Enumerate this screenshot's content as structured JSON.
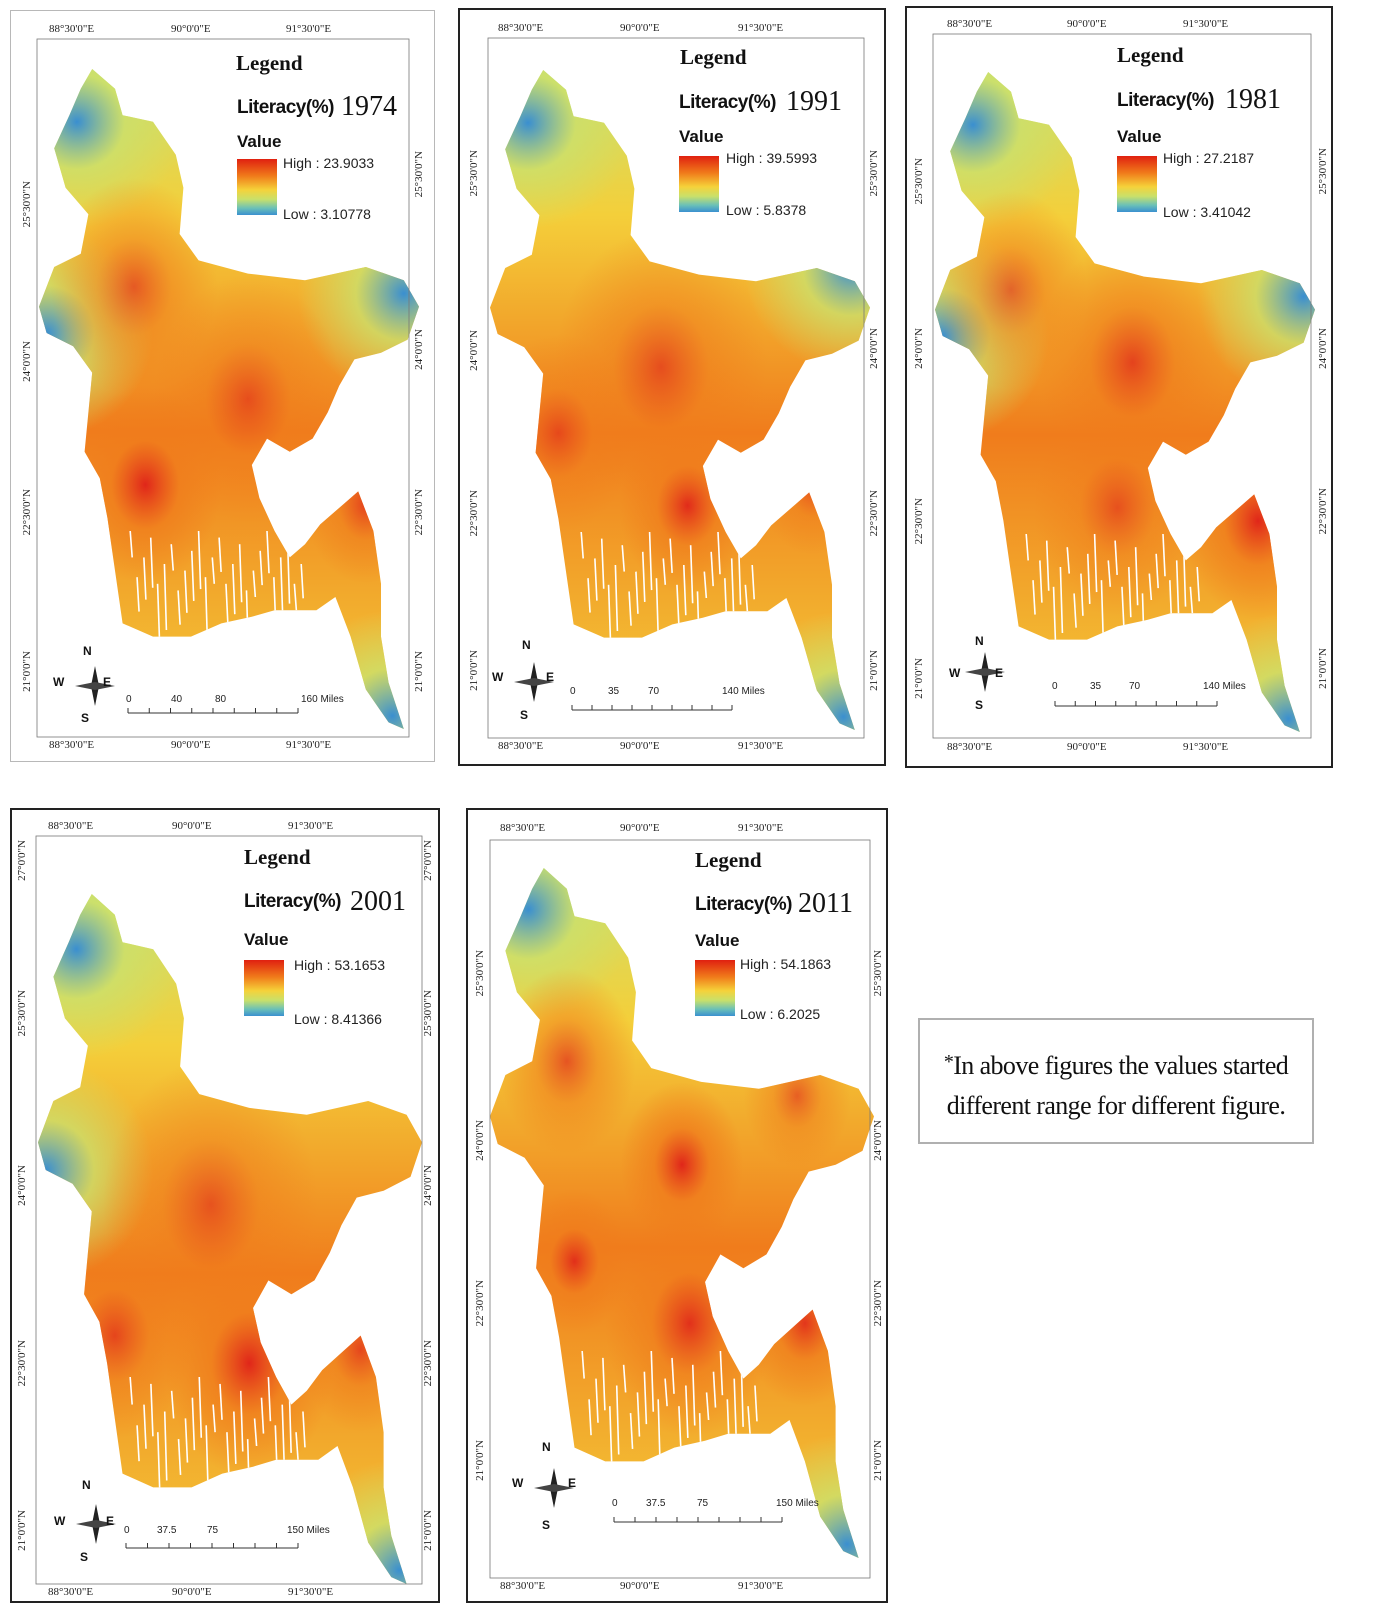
{
  "maps": [
    {
      "id": "map-1974",
      "legend_title": "Legend",
      "variable_label": "Literacy(%)",
      "year": "1974",
      "value_label": "Value",
      "high_label": "High : 23.9033",
      "low_label": "Low : 3.10778",
      "high": 23.9033,
      "low": 3.10778,
      "lon_ticks": [
        "88°30'0\"E",
        "90°0'0\"E",
        "91°30'0\"E"
      ],
      "lat_ticks": [
        "25°30'0\"N",
        "24°0'0\"N",
        "22°30'0\"N",
        "21°0'0\"N"
      ],
      "scale_ticks": [
        "0",
        "40",
        "80",
        "160 Miles"
      ],
      "compass": {
        "n": "N",
        "s": "S",
        "e": "E",
        "w": "W"
      }
    },
    {
      "id": "map-1991",
      "legend_title": "Legend",
      "variable_label": "Literacy(%)",
      "year": "1991",
      "value_label": "Value",
      "high_label": "High : 39.5993",
      "low_label": "Low : 5.8378",
      "high": 39.5993,
      "low": 5.8378,
      "lon_ticks": [
        "88°30'0\"E",
        "90°0'0\"E",
        "91°30'0\"E"
      ],
      "lat_ticks": [
        "25°30'0\"N",
        "24°0'0\"N",
        "22°30'0\"N",
        "21°0'0\"N"
      ],
      "scale_ticks": [
        "0",
        "35",
        "70",
        "140 Miles"
      ],
      "compass": {
        "n": "N",
        "s": "S",
        "e": "E",
        "w": "W"
      }
    },
    {
      "id": "map-1981",
      "legend_title": "Legend",
      "variable_label": "Literacy(%)",
      "year": "1981",
      "value_label": "Value",
      "high_label": "High : 27.2187",
      "low_label": "Low : 3.41042",
      "high": 27.2187,
      "low": 3.41042,
      "lon_ticks": [
        "88°30'0\"E",
        "90°0'0\"E",
        "91°30'0\"E"
      ],
      "lat_ticks": [
        "25°30'0\"N",
        "24°0'0\"N",
        "22°30'0\"N",
        "21°0'0\"N"
      ],
      "scale_ticks": [
        "0",
        "35",
        "70",
        "140 Miles"
      ],
      "compass": {
        "n": "N",
        "s": "S",
        "e": "E",
        "w": "W"
      }
    },
    {
      "id": "map-2001",
      "legend_title": "Legend",
      "variable_label": "Literacy(%)",
      "year": "2001",
      "value_label": "Value",
      "high_label": "High : 53.1653",
      "low_label": "Low : 8.41366",
      "high": 53.1653,
      "low": 8.41366,
      "lon_ticks": [
        "88°30'0\"E",
        "90°0'0\"E",
        "91°30'0\"E"
      ],
      "lat_ticks": [
        "27°0'0\"N",
        "25°30'0\"N",
        "24°0'0\"N",
        "22°30'0\"N",
        "21°0'0\"N"
      ],
      "scale_ticks": [
        "0",
        "37.5",
        "75",
        "150 Miles"
      ],
      "compass": {
        "n": "N",
        "s": "S",
        "e": "E",
        "w": "W"
      }
    },
    {
      "id": "map-2011",
      "legend_title": "Legend",
      "variable_label": "Literacy(%)",
      "year": "2011",
      "value_label": "Value",
      "high_label": "High : 54.1863",
      "low_label": "Low : 6.2025",
      "high": 54.1863,
      "low": 6.2025,
      "lon_ticks": [
        "88°30'0\"E",
        "90°0'0\"E",
        "91°30'0\"E"
      ],
      "lat_ticks": [
        "25°30'0\"N",
        "24°0'0\"N",
        "22°30'0\"N",
        "21°0'0\"N"
      ],
      "scale_ticks": [
        "0",
        "37.5",
        "75",
        "150 Miles"
      ],
      "compass": {
        "n": "N",
        "s": "S",
        "e": "E",
        "w": "W"
      }
    }
  ],
  "note": {
    "marker": "*",
    "text": "In above figures the values started different range for different figure."
  },
  "colors": {
    "high": "#e0261a",
    "mid_high": "#f07c1c",
    "mid": "#f4cf3a",
    "mid_low": "#cbe06c",
    "low": "#3a8fd0"
  }
}
